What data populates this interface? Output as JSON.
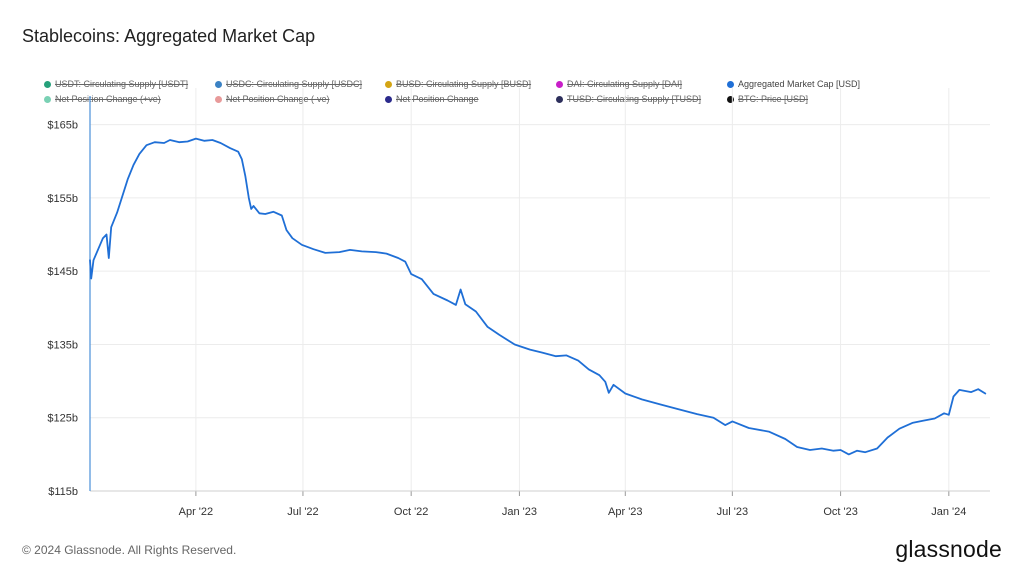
{
  "title": "Stablecoins: Aggregated Market Cap",
  "legend": [
    {
      "label": "USDT: Circulating Supply [USDT]",
      "color": "#26a17b",
      "active": false
    },
    {
      "label": "USDC: Circulating Supply [USDC]",
      "color": "#3b82c4",
      "active": false
    },
    {
      "label": "BUSD: Circulating Supply [BUSD]",
      "color": "#d4a514",
      "active": false
    },
    {
      "label": "DAI: Circulating Supply [DAI]",
      "color": "#c81ec8",
      "active": false
    },
    {
      "label": "Aggregated Market Cap [USD]",
      "color": "#1f6fd6",
      "active": true
    },
    {
      "label": "Net Position Change (+ve)",
      "color": "#7ad1b4",
      "active": false
    },
    {
      "label": "Net Position Change (-ve)",
      "color": "#e89a9a",
      "active": false
    },
    {
      "label": "Net Position Change",
      "color": "#2b2a8c",
      "active": false
    },
    {
      "label": "TUSD: Circulating Supply [TUSD]",
      "color": "#2d2f5c",
      "active": false
    },
    {
      "label": "BTC: Price [USD]",
      "color": "#111111",
      "active": false
    }
  ],
  "footer": "© 2024 Glassnode. All Rights Reserved.",
  "brand": "glassnode",
  "chart_data": {
    "type": "line",
    "title": "Stablecoins: Aggregated Market Cap",
    "ylim": [
      115,
      170
    ],
    "xlim": [
      "2022-01-01",
      "2024-02-05"
    ],
    "y_ticks": [
      {
        "value": 115,
        "label": "$115b"
      },
      {
        "value": 125,
        "label": "$125b"
      },
      {
        "value": 135,
        "label": "$135b"
      },
      {
        "value": 145,
        "label": "$145b"
      },
      {
        "value": 155,
        "label": "$155b"
      },
      {
        "value": 165,
        "label": "$165b"
      }
    ],
    "x_ticks": [
      {
        "date": "2022-04-01",
        "label": "Apr '22"
      },
      {
        "date": "2022-07-01",
        "label": "Jul '22"
      },
      {
        "date": "2022-10-01",
        "label": "Oct '22"
      },
      {
        "date": "2023-01-01",
        "label": "Jan '23"
      },
      {
        "date": "2023-04-01",
        "label": "Apr '23"
      },
      {
        "date": "2023-07-01",
        "label": "Jul '23"
      },
      {
        "date": "2023-10-01",
        "label": "Oct '23"
      },
      {
        "date": "2024-01-01",
        "label": "Jan '24"
      }
    ],
    "grid": true,
    "legend_position": "top",
    "series": [
      {
        "name": "Aggregated Market Cap [USD]",
        "color": "#1f6fd6",
        "points": [
          [
            "2022-01-01",
            146.5
          ],
          [
            "2022-01-02",
            144.0
          ],
          [
            "2022-01-04",
            146.5
          ],
          [
            "2022-01-08",
            148.0
          ],
          [
            "2022-01-12",
            149.5
          ],
          [
            "2022-01-15",
            150.0
          ],
          [
            "2022-01-17",
            146.8
          ],
          [
            "2022-01-19",
            151.0
          ],
          [
            "2022-01-24",
            153.0
          ],
          [
            "2022-01-28",
            155.0
          ],
          [
            "2022-02-02",
            157.5
          ],
          [
            "2022-02-07",
            159.5
          ],
          [
            "2022-02-12",
            161.0
          ],
          [
            "2022-02-18",
            162.2
          ],
          [
            "2022-02-25",
            162.6
          ],
          [
            "2022-03-05",
            162.5
          ],
          [
            "2022-03-10",
            162.9
          ],
          [
            "2022-03-18",
            162.6
          ],
          [
            "2022-03-25",
            162.7
          ],
          [
            "2022-04-01",
            163.1
          ],
          [
            "2022-04-08",
            162.8
          ],
          [
            "2022-04-15",
            162.9
          ],
          [
            "2022-04-22",
            162.5
          ],
          [
            "2022-04-30",
            161.8
          ],
          [
            "2022-05-07",
            161.3
          ],
          [
            "2022-05-10",
            160.3
          ],
          [
            "2022-05-13",
            158.0
          ],
          [
            "2022-05-16",
            155.0
          ],
          [
            "2022-05-18",
            153.5
          ],
          [
            "2022-05-20",
            153.9
          ],
          [
            "2022-05-25",
            152.9
          ],
          [
            "2022-05-30",
            152.8
          ],
          [
            "2022-06-06",
            153.1
          ],
          [
            "2022-06-13",
            152.6
          ],
          [
            "2022-06-17",
            150.6
          ],
          [
            "2022-06-22",
            149.5
          ],
          [
            "2022-06-30",
            148.6
          ],
          [
            "2022-07-10",
            148.0
          ],
          [
            "2022-07-20",
            147.5
          ],
          [
            "2022-08-01",
            147.6
          ],
          [
            "2022-08-10",
            147.9
          ],
          [
            "2022-08-20",
            147.7
          ],
          [
            "2022-09-01",
            147.6
          ],
          [
            "2022-09-10",
            147.4
          ],
          [
            "2022-09-20",
            146.8
          ],
          [
            "2022-09-26",
            146.3
          ],
          [
            "2022-10-01",
            144.6
          ],
          [
            "2022-10-10",
            143.9
          ],
          [
            "2022-10-20",
            141.9
          ],
          [
            "2022-11-01",
            141.0
          ],
          [
            "2022-11-08",
            140.4
          ],
          [
            "2022-11-12",
            142.5
          ],
          [
            "2022-11-16",
            140.5
          ],
          [
            "2022-11-25",
            139.5
          ],
          [
            "2022-12-05",
            137.4
          ],
          [
            "2022-12-15",
            136.3
          ],
          [
            "2022-12-28",
            135.0
          ],
          [
            "2023-01-10",
            134.3
          ],
          [
            "2023-01-20",
            133.9
          ],
          [
            "2023-02-01",
            133.4
          ],
          [
            "2023-02-10",
            133.5
          ],
          [
            "2023-02-20",
            132.8
          ],
          [
            "2023-03-01",
            131.6
          ],
          [
            "2023-03-10",
            130.8
          ],
          [
            "2023-03-15",
            129.9
          ],
          [
            "2023-03-18",
            128.4
          ],
          [
            "2023-03-22",
            129.5
          ],
          [
            "2023-04-01",
            128.3
          ],
          [
            "2023-04-15",
            127.5
          ],
          [
            "2023-05-01",
            126.8
          ],
          [
            "2023-05-15",
            126.2
          ],
          [
            "2023-06-01",
            125.5
          ],
          [
            "2023-06-15",
            125.0
          ],
          [
            "2023-06-25",
            124.0
          ],
          [
            "2023-07-01",
            124.5
          ],
          [
            "2023-07-15",
            123.6
          ],
          [
            "2023-08-01",
            123.1
          ],
          [
            "2023-08-15",
            122.1
          ],
          [
            "2023-08-25",
            121.0
          ],
          [
            "2023-09-05",
            120.6
          ],
          [
            "2023-09-15",
            120.8
          ],
          [
            "2023-09-25",
            120.5
          ],
          [
            "2023-10-01",
            120.6
          ],
          [
            "2023-10-08",
            120.0
          ],
          [
            "2023-10-15",
            120.5
          ],
          [
            "2023-10-22",
            120.3
          ],
          [
            "2023-11-01",
            120.8
          ],
          [
            "2023-11-10",
            122.3
          ],
          [
            "2023-11-20",
            123.5
          ],
          [
            "2023-12-01",
            124.3
          ],
          [
            "2023-12-10",
            124.6
          ],
          [
            "2023-12-20",
            124.9
          ],
          [
            "2023-12-28",
            125.6
          ],
          [
            "2024-01-01",
            125.4
          ],
          [
            "2024-01-05",
            127.9
          ],
          [
            "2024-01-10",
            128.8
          ],
          [
            "2024-01-20",
            128.5
          ],
          [
            "2024-01-26",
            128.9
          ],
          [
            "2024-02-01",
            128.3
          ]
        ]
      }
    ]
  }
}
